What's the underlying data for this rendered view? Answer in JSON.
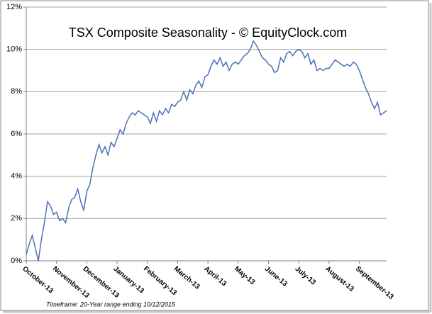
{
  "chart_data": {
    "type": "line",
    "title": "TSX Composite Seasonality - © EquityClock.com",
    "footnote": "Timeframe: 20-Year range ending 10/12/2015",
    "x": [
      0,
      0.1,
      0.2,
      0.3,
      0.4,
      0.5,
      0.6,
      0.7,
      0.8,
      0.9,
      1,
      1.1,
      1.2,
      1.3,
      1.4,
      1.5,
      1.6,
      1.7,
      1.8,
      1.9,
      2,
      2.1,
      2.2,
      2.3,
      2.4,
      2.5,
      2.6,
      2.7,
      2.8,
      2.9,
      3,
      3.1,
      3.2,
      3.3,
      3.4,
      3.5,
      3.6,
      3.7,
      3.8,
      3.9,
      4,
      4.1,
      4.2,
      4.3,
      4.4,
      4.5,
      4.6,
      4.7,
      4.8,
      4.9,
      5,
      5.1,
      5.2,
      5.3,
      5.4,
      5.5,
      5.6,
      5.7,
      5.8,
      5.9,
      6,
      6.1,
      6.2,
      6.3,
      6.4,
      6.5,
      6.6,
      6.7,
      6.8,
      6.9,
      7,
      7.1,
      7.2,
      7.3,
      7.4,
      7.5,
      7.6,
      7.7,
      7.8,
      7.9,
      8,
      8.1,
      8.2,
      8.3,
      8.4,
      8.5,
      8.6,
      8.7,
      8.8,
      8.9,
      9,
      9.1,
      9.2,
      9.3,
      9.4,
      9.5,
      9.6,
      9.7,
      9.8,
      9.9,
      10,
      10.1,
      10.2,
      10.3,
      10.4,
      10.5,
      10.6,
      10.7,
      10.8,
      10.9,
      11,
      11.1,
      11.2,
      11.3,
      11.4,
      11.5,
      11.6,
      11.7,
      11.8,
      11.9
    ],
    "series": [
      {
        "color": "#4a72b8",
        "values": [
          0.3,
          0.8,
          1.2,
          0.6,
          0,
          1.0,
          1.8,
          2.8,
          2.6,
          2.2,
          2.3,
          1.9,
          2.0,
          1.8,
          2.5,
          2.9,
          3.0,
          3.4,
          2.8,
          2.4,
          3.3,
          3.6,
          4.4,
          5.0,
          5.5,
          5.1,
          5.4,
          5.0,
          5.6,
          5.4,
          5.8,
          6.2,
          6.0,
          6.5,
          6.8,
          7.0,
          6.9,
          7.1,
          7.0,
          6.9,
          6.8,
          6.5,
          7.0,
          6.6,
          7.1,
          6.9,
          7.2,
          7.0,
          7.4,
          7.3,
          7.5,
          7.6,
          8.0,
          7.6,
          8.1,
          7.9,
          8.3,
          8.5,
          8.2,
          8.7,
          8.8,
          9.2,
          9.5,
          9.3,
          9.6,
          9.2,
          9.4,
          9.0,
          9.3,
          9.4,
          9.3,
          9.5,
          9.7,
          9.8,
          10.0,
          10.4,
          10.2,
          9.9,
          9.6,
          9.5,
          9.3,
          9.2,
          8.9,
          9.0,
          9.6,
          9.4,
          9.8,
          9.9,
          9.7,
          9.9,
          10.0,
          9.9,
          9.6,
          9.8,
          9.3,
          9.5,
          9.0,
          9.1,
          9.0,
          9.1,
          9.1,
          9.3,
          9.5,
          9.4,
          9.3,
          9.2,
          9.3,
          9.2,
          9.4,
          9.3,
          9.0,
          8.6,
          8.2,
          7.9,
          7.5,
          7.2,
          7.5,
          6.9,
          7.0,
          7.1
        ]
      }
    ],
    "xlim": [
      0,
      11.9
    ],
    "xticks": [
      {
        "value": 0,
        "label": "October-13"
      },
      {
        "value": 1,
        "label": "November-13"
      },
      {
        "value": 2,
        "label": "December-13"
      },
      {
        "value": 3,
        "label": "January-13"
      },
      {
        "value": 4,
        "label": "February-13"
      },
      {
        "value": 5,
        "label": "March-13"
      },
      {
        "value": 6,
        "label": "April-13"
      },
      {
        "value": 7,
        "label": "May-13"
      },
      {
        "value": 8,
        "label": "June-13"
      },
      {
        "value": 9,
        "label": "July-13"
      },
      {
        "value": 10,
        "label": "August-13"
      },
      {
        "value": 11,
        "label": "September-13"
      }
    ],
    "ylim": [
      0,
      12
    ],
    "yticks": [
      {
        "value": 0,
        "label": "0%"
      },
      {
        "value": 2,
        "label": "2%"
      },
      {
        "value": 4,
        "label": "4%"
      },
      {
        "value": 6,
        "label": "6%"
      },
      {
        "value": 8,
        "label": "8%"
      },
      {
        "value": 10,
        "label": "10%"
      },
      {
        "value": 12,
        "label": "12%"
      }
    ],
    "grid": true
  }
}
